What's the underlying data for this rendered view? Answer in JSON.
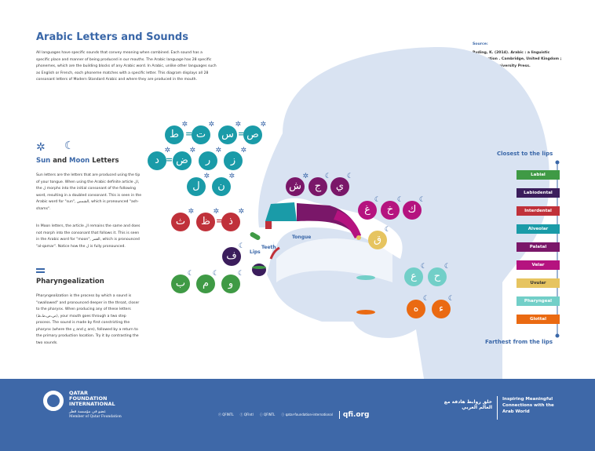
{
  "title": "Arabic Letters and Sounds",
  "intro": "All languages have specific sounds that convey meaning when combined. Each sound has a specific place and manner of being produced in our mouths. The Arabic language has 28 specific phonemes, which are the building blocks of any Arabic word. In Arabic, unlike other languages such as English or French, each phoneme matches with a specific letter. This diagram displays all 28 consonant letters of Modern Standard Arabic and where they are produced in the mouth.",
  "source": {
    "label": "Source:",
    "text": "Ryding, K. (2014). Arabic : a linguistic introduction . Cambridge, United Kingdom ; Cambridge University Press."
  },
  "sun_moon": {
    "title_sun": "Sun",
    "title_and": " and ",
    "title_moon": "Moon",
    "title_end": " Letters",
    "p1": "Sun letters are the letters that are produced using the tip of your tongue. When using the Arabic definite article ال, the ل morphs into the initial consonant of the following word, resulting in a doubled consonant. This is seen in the Arabic word for \"sun\", الشمس, which is pronounced \"ash-shams\".",
    "p2": "In Moon letters, the article ال remains the same and does not morph into the consonant that follows it. This is seen in the Arabic word for \"moon\", القمر, which is pronounced \"al-qamar\". Notice how the ل is fully pronounced."
  },
  "pharyngealization": {
    "title": "Pharyngealization",
    "text": "Pharyngealization is the process by which a sound is \"swallowed\" and pronounced deeper in the throat, closer to the pharynx. When producing any of these letters (ص،ض،ط،ظ), your mouth goes through a two step process. The sound is made by first constricting the pharynx (where the ح and ع are), followed by a return to the primary production location. Try it by contrasting the two sounds."
  },
  "icons": {
    "sun": "sun-icon",
    "moon": "moon-icon",
    "equals": "equals-icon"
  },
  "diagram_labels": {
    "tongue": "Tongue",
    "teeth": "Teeth",
    "lips": "Lips"
  },
  "letters": [
    {
      "ch": "ط",
      "type": "sun",
      "place": "Alveolar"
    },
    {
      "ch": "ت",
      "type": "sun",
      "place": "Alveolar"
    },
    {
      "ch": "س",
      "type": "sun",
      "place": "Alveolar"
    },
    {
      "ch": "ص",
      "type": "sun",
      "place": "Alveolar"
    },
    {
      "ch": "د",
      "type": "sun",
      "place": "Alveolar"
    },
    {
      "ch": "ض",
      "type": "sun",
      "place": "Alveolar"
    },
    {
      "ch": "ر",
      "type": "sun",
      "place": "Alveolar"
    },
    {
      "ch": "ز",
      "type": "sun",
      "place": "Alveolar"
    },
    {
      "ch": "ل",
      "type": "sun",
      "place": "Alveolar"
    },
    {
      "ch": "ن",
      "type": "sun",
      "place": "Alveolar"
    },
    {
      "ch": "ش",
      "type": "sun",
      "place": "Palatal"
    },
    {
      "ch": "ج",
      "type": "moon",
      "place": "Palatal"
    },
    {
      "ch": "ي",
      "type": "moon",
      "place": "Palatal"
    },
    {
      "ch": "غ",
      "type": "moon",
      "place": "Velar"
    },
    {
      "ch": "خ",
      "type": "moon",
      "place": "Velar"
    },
    {
      "ch": "ك",
      "type": "moon",
      "place": "Velar"
    },
    {
      "ch": "ق",
      "type": "moon",
      "place": "Uvular"
    },
    {
      "ch": "ث",
      "type": "sun",
      "place": "Interdental"
    },
    {
      "ch": "ظ",
      "type": "sun",
      "place": "Interdental"
    },
    {
      "ch": "ذ",
      "type": "sun",
      "place": "Interdental"
    },
    {
      "ch": "ف",
      "type": "moon",
      "place": "Labiodental"
    },
    {
      "ch": "ب",
      "type": "moon",
      "place": "Labial"
    },
    {
      "ch": "م",
      "type": "moon",
      "place": "Labial"
    },
    {
      "ch": "و",
      "type": "moon",
      "place": "Labial"
    },
    {
      "ch": "ع",
      "type": "moon",
      "place": "Pharyngeal"
    },
    {
      "ch": "ح",
      "type": "moon",
      "place": "Pharyngeal"
    },
    {
      "ch": "ه",
      "type": "moon",
      "place": "Glottal"
    },
    {
      "ch": "ء",
      "type": "moon",
      "place": "Glottal"
    }
  ],
  "legend": {
    "top": "Closest to the lips",
    "bottom": "Farthest from the lips",
    "items": [
      {
        "label": "Labial",
        "color": "#3f9a45"
      },
      {
        "label": "Labiodental",
        "color": "#3b1d5c"
      },
      {
        "label": "Interdental",
        "color": "#c0313a"
      },
      {
        "label": "Alveolar",
        "color": "#1a9ba8"
      },
      {
        "label": "Palatal",
        "color": "#7a1769"
      },
      {
        "label": "Velar",
        "color": "#b5137f"
      },
      {
        "label": "Uvular",
        "color": "#e6c460"
      },
      {
        "label": "Pharyngeal",
        "color": "#72cfc8"
      },
      {
        "label": "Glottal",
        "color": "#ea6a12"
      }
    ]
  },
  "footer": {
    "org_line1": "QATAR",
    "org_line2": "FOUNDATION",
    "org_line3": "INTERNATIONAL",
    "org_arabic": "عضو في مؤسسة قطر",
    "member": "Member of Qatar Foundation",
    "social": [
      "QFINTL",
      "QFIntl",
      "QFINTL",
      "qatar-foundation-international"
    ],
    "site": "qfi.org",
    "tagline_ar": "خلق روابط هادفة مع العالم العربي",
    "tagline": "Inspiring Meaningful Connections with the Arab World"
  }
}
